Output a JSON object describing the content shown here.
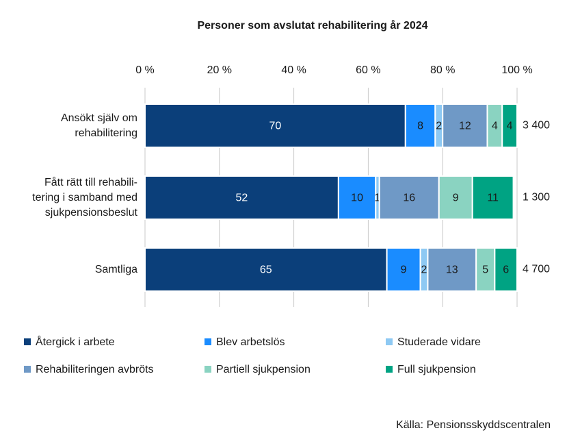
{
  "chart_data": {
    "type": "stacked_bar_horizontal",
    "title": "Personer som avslutat rehabilitering år 2024",
    "categories": [
      "Ansökt själv om\nrehabilitering",
      "Fått rätt till rehabili-\ntering i samband med\nsjukpensionsbeslut",
      "Samtliga"
    ],
    "series": [
      {
        "name": "Återgick i arbete",
        "color": "#0b3f7a",
        "values": [
          70,
          52,
          65
        ]
      },
      {
        "name": "Blev arbetslös",
        "color": "#1a8cff",
        "values": [
          8,
          10,
          9
        ]
      },
      {
        "name": "Studerade vidare",
        "color": "#8ec9f3",
        "values": [
          2,
          1,
          2
        ]
      },
      {
        "name": "Rehabiliteringen avbröts",
        "color": "#6f99c6",
        "values": [
          12,
          16,
          13
        ]
      },
      {
        "name": "Partiell sjukpension",
        "color": "#8ad3c1",
        "values": [
          4,
          9,
          5
        ]
      },
      {
        "name": "Full sjukpension",
        "color": "#00a383",
        "values": [
          4,
          11,
          6
        ]
      }
    ],
    "totals": {
      "values": [
        3400,
        1300,
        4700
      ],
      "value_labels": [
        "3 400",
        "1 300",
        "4 700"
      ]
    },
    "xlim": [
      0,
      100
    ],
    "xticks": [
      {
        "value": 0,
        "label": "0 %"
      },
      {
        "value": 20,
        "label": "20 %"
      },
      {
        "value": 40,
        "label": "40 %"
      },
      {
        "value": 60,
        "label": "60 %"
      },
      {
        "value": 80,
        "label": "80 %"
      },
      {
        "value": 100,
        "label": "100 %"
      }
    ],
    "grid": true,
    "source": "Källa: Pensionsskyddscentralen"
  }
}
